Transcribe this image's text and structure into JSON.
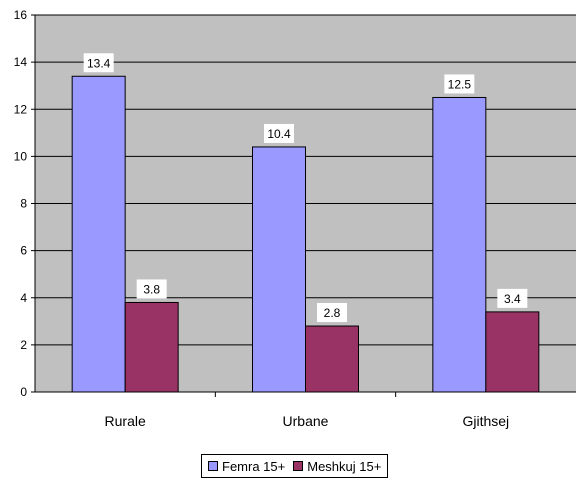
{
  "chart_data": {
    "type": "bar",
    "categories": [
      "Rurale",
      "Urbane",
      "Gjithsej"
    ],
    "series": [
      {
        "name": "Femra 15+",
        "values": [
          13.4,
          10.4,
          12.5
        ],
        "color": "#9999ff"
      },
      {
        "name": "Meshkuj 15+",
        "values": [
          3.8,
          2.8,
          3.4
        ],
        "color": "#993366"
      }
    ],
    "ylim": [
      0,
      16
    ],
    "yticks": [
      0,
      2,
      4,
      6,
      8,
      10,
      12,
      14,
      16
    ],
    "grid": true,
    "plot_background": "#c0c0c0",
    "legend": "bottom",
    "data_labels": true
  }
}
